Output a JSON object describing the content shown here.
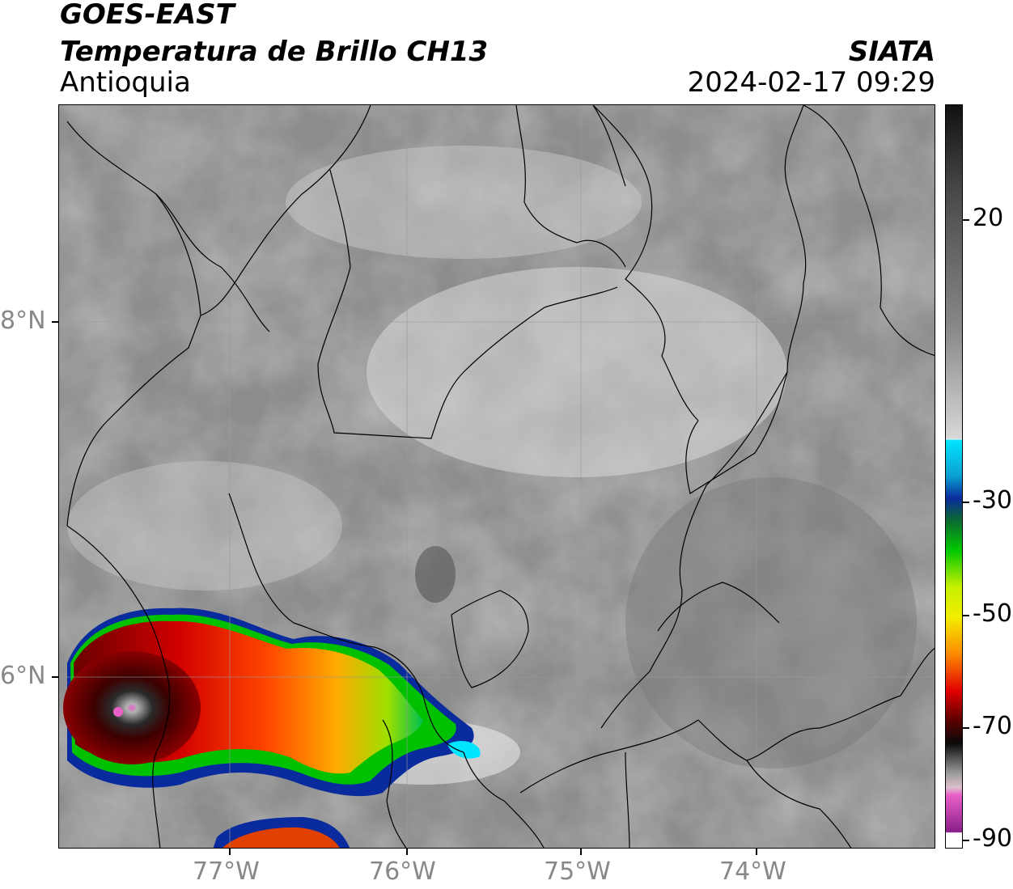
{
  "header": {
    "satellite": "GOES-EAST",
    "product": "Temperatura de Brillo CH13",
    "region": "Antioquia",
    "organization": "SIATA",
    "datetime": "2024-02-17 09:29"
  },
  "axes": {
    "x_ticks": [
      {
        "label": "77°W",
        "lon": -77
      },
      {
        "label": "76°W",
        "lon": -76
      },
      {
        "label": "75°W",
        "lon": -75
      },
      {
        "label": "74°W",
        "lon": -74
      }
    ],
    "y_ticks": [
      {
        "label": "8°N",
        "lat": 8
      },
      {
        "label": "6°N",
        "lat": 6
      }
    ],
    "lon_range": [
      -77.97,
      -73.03
    ],
    "lat_range": [
      5.05,
      9.22
    ],
    "grid": true
  },
  "colorbar": {
    "ticks": [
      {
        "label": "20",
        "value": 20
      },
      {
        "label": "-30",
        "value": -30
      },
      {
        "label": "-50",
        "value": -50
      },
      {
        "label": "-70",
        "value": -70
      },
      {
        "label": "-90",
        "value": -90
      }
    ],
    "colors": {
      "warm_gray_top": "#111111",
      "light": "#f2f2f2",
      "cyan": "#00e5ff",
      "blue": "#0a2b9e",
      "green": "#00c800",
      "yellow": "#f2ee00",
      "orange": "#ff8a00",
      "red": "#e00000",
      "dark_red": "#5a0000",
      "black": "#0a0a0a",
      "pink": "#e860c8",
      "purple": "#8a1e8a"
    }
  }
}
